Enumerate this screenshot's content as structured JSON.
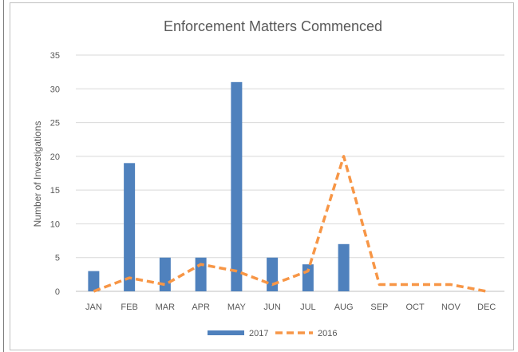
{
  "chart_data": {
    "type": "bar",
    "title": "Enforcement  Matters Commenced",
    "ylabel": "Number of Investigations",
    "xlabel": "",
    "ylim": [
      0,
      35
    ],
    "yticks": [
      0,
      5,
      10,
      15,
      20,
      25,
      30,
      35
    ],
    "grid": true,
    "legend_position": "bottom",
    "categories": [
      "JAN",
      "FEB",
      "MAR",
      "APR",
      "MAY",
      "JUN",
      "JUL",
      "AUG",
      "SEP",
      "OCT",
      "NOV",
      "DEC"
    ],
    "series": [
      {
        "name": "2017",
        "kind": "bar",
        "color": "#4f81bd",
        "values": [
          3,
          19,
          5,
          5,
          31,
          5,
          4,
          7,
          null,
          null,
          null,
          null
        ]
      },
      {
        "name": "2016",
        "kind": "line",
        "style": "dashed",
        "color": "#f79646",
        "values": [
          0,
          2,
          1,
          4,
          3,
          1,
          3,
          20,
          1,
          1,
          1,
          0
        ]
      }
    ]
  }
}
